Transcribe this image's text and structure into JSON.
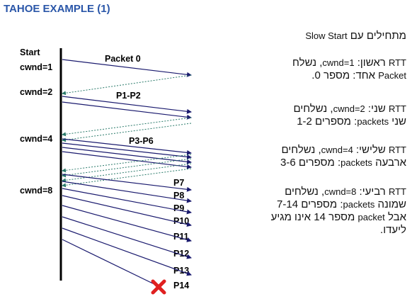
{
  "title": "TAHOE EXAMPLE (1)",
  "diagram": {
    "start_label": "Start",
    "cwnd_labels": [
      "cwnd=1",
      "cwnd=2",
      "cwnd=4",
      "cwnd=8"
    ],
    "packet_labels": [
      "Packet 0",
      "P1-P2",
      "P3-P6",
      "P7",
      "P8",
      "P9",
      "P10",
      "P11",
      "P12",
      "P13",
      "P14"
    ],
    "lost_packet": "P14",
    "colors": {
      "packet": "#1a1a6e",
      "ack": "#2a7a6a",
      "loss": "#e02020"
    }
  },
  "notes": [
    {
      "runs": [
        {
          "t": "מתחילים עם "
        },
        {
          "t": "Slow Start",
          "en": true
        }
      ]
    },
    {
      "lines": [
        [
          {
            "t": "RTT",
            "en": true
          },
          {
            "t": " ראשון: "
          },
          {
            "t": "cwnd=1",
            "en": true
          },
          {
            "t": ", נשלח"
          }
        ],
        [
          {
            "t": "Packet",
            "en": true
          },
          {
            "t": " אחד: מספר 0."
          }
        ]
      ]
    },
    {
      "lines": [
        [
          {
            "t": "RTT",
            "en": true
          },
          {
            "t": " שני: "
          },
          {
            "t": "cwnd=2",
            "en": true
          },
          {
            "t": ", נשלחים"
          }
        ],
        [
          {
            "t": "שני "
          },
          {
            "t": "packets",
            "en": true
          },
          {
            "t": ": מספרים 1-2"
          }
        ]
      ]
    },
    {
      "lines": [
        [
          {
            "t": "RTT",
            "en": true
          },
          {
            "t": " שלישי: "
          },
          {
            "t": "cwnd=4",
            "en": true
          },
          {
            "t": ", נשלחים"
          }
        ],
        [
          {
            "t": "ארבעה "
          },
          {
            "t": "packets",
            "en": true
          },
          {
            "t": ": מספרים 3-6"
          }
        ]
      ]
    },
    {
      "lines": [
        [
          {
            "t": "RTT",
            "en": true
          },
          {
            "t": " רביעי: "
          },
          {
            "t": "cwnd=8",
            "en": true
          },
          {
            "t": ", נשלחים"
          }
        ],
        [
          {
            "t": "שמונה "
          },
          {
            "t": "packets",
            "en": true
          },
          {
            "t": ": מספרים 7-14"
          }
        ],
        [
          {
            "t": "אבל "
          },
          {
            "t": "packet",
            "en": true
          },
          {
            "t": " מספר 14 אינו מגיע"
          }
        ],
        [
          {
            "t": "ליעדו."
          }
        ]
      ]
    }
  ]
}
